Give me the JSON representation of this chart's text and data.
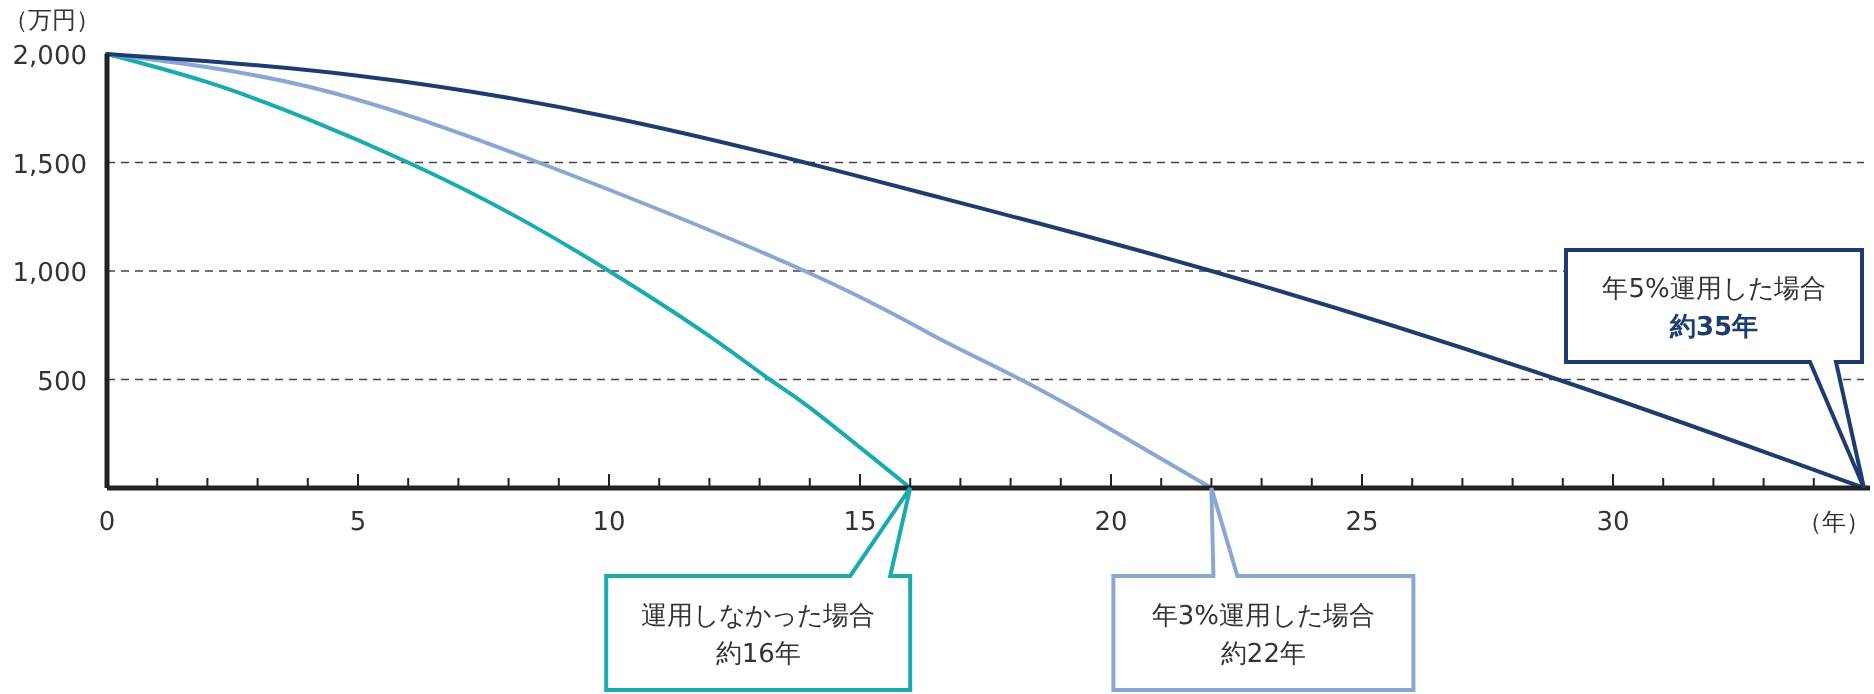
{
  "chart_data": {
    "type": "line",
    "ylabel": "（万円）",
    "xlabel": "（年）",
    "xlim": [
      0,
      35
    ],
    "ylim": [
      0,
      2000
    ],
    "xticks": [
      0,
      {
        "value": 1,
        "label": null
      },
      {
        "value": 2,
        "label": null
      },
      {
        "value": 3,
        "label": null
      },
      {
        "value": 4,
        "label": null
      },
      5,
      {
        "value": 6,
        "label": null
      },
      {
        "value": 7,
        "label": null
      },
      {
        "value": 8,
        "label": null
      },
      {
        "value": 9,
        "label": null
      },
      10,
      {
        "value": 11,
        "label": null
      },
      {
        "value": 12,
        "label": null
      },
      {
        "value": 13,
        "label": null
      },
      {
        "value": 14,
        "label": null
      },
      15,
      {
        "value": 16,
        "label": null
      },
      {
        "value": 17,
        "label": null
      },
      {
        "value": 18,
        "label": null
      },
      {
        "value": 19,
        "label": null
      },
      20,
      {
        "value": 21,
        "label": null
      },
      {
        "value": 22,
        "label": null
      },
      {
        "value": 23,
        "label": null
      },
      {
        "value": 24,
        "label": null
      },
      25,
      {
        "value": 26,
        "label": null
      },
      {
        "value": 27,
        "label": null
      },
      {
        "value": 28,
        "label": null
      },
      {
        "value": 29,
        "label": null
      },
      30,
      {
        "value": 31,
        "label": null
      },
      {
        "value": 32,
        "label": null
      },
      {
        "value": 33,
        "label": null
      },
      {
        "value": 34,
        "label": null
      }
    ],
    "yticks": [
      500,
      {
        "value": 1000,
        "label": "1,000"
      },
      {
        "value": 1500,
        "label": "1,500"
      },
      {
        "value": 2000,
        "label": "2,000"
      }
    ],
    "grid": "y",
    "line_style": "solid",
    "marker": "none",
    "series": [
      {
        "color": "#1aabae",
        "x": [
          0,
          2,
          4,
          6,
          8,
          10,
          12,
          13.2,
          14,
          16
        ],
        "values": [
          2000,
          1870,
          1700,
          1500,
          1270,
          1000,
          700,
          500,
          370,
          0
        ]
      },
      {
        "color": "#89a7d2",
        "x": [
          0,
          4,
          8.6,
          13.9,
          16.4,
          18.2,
          20,
          22
        ],
        "values": [
          2000,
          1850,
          1500,
          1000,
          710,
          500,
          270,
          0
        ]
      },
      {
        "color": "#1f3c72",
        "x": [
          0,
          5,
          10,
          13.9,
          16.4,
          22,
          28.9,
          35
        ],
        "values": [
          2000,
          1900,
          1710,
          1500,
          1350,
          1000,
          500,
          0
        ]
      }
    ],
    "annotations": [
      "運用しなかった場合",
      "約16年",
      "年3%運用した場合",
      "約22年",
      "年5%運用した場合",
      "約35年"
    ]
  }
}
